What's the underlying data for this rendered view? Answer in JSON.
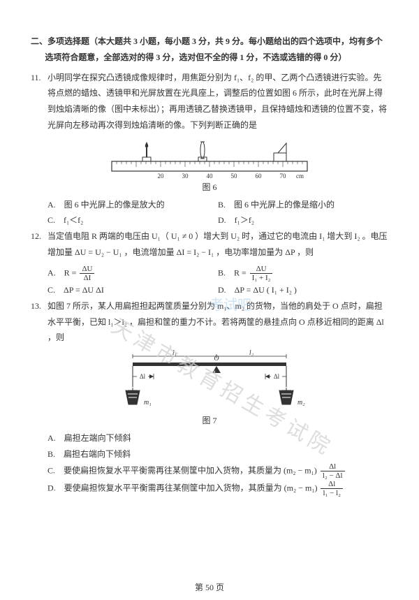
{
  "section": {
    "heading": "二、多项选择题（本大题共 3 小题，每小题 3 分，共 9 分。每小题给出的四个选项中，均有多个选项符合题意，全部选对的得 3 分，选对但不全的得 1 分，不选或选错的得 0 分）"
  },
  "q11": {
    "num": "11.",
    "text": "小明同学在探究凸透镜成像规律时，用焦距分别为 f₁、f₂ 的甲、乙两个凸透镜进行实验。先将点燃的蜡烛、透镜甲和光屏放置在光具座上，调整后的位置如图 6 所示，此时在光屏上得到烛焰清晰的像（图中未标出）；再用透镜乙替换透镜甲，且保持蜡烛和透镜的位置不变，将光屏向左移动再次得到烛焰清晰的像。下列判断正确的是",
    "figcap": "图 6",
    "optA": "A.　图 6 中光屏上的像是放大的",
    "optB": "B.　图 6 中光屏上的像是缩小的",
    "optC": "C.　f₁＜f₂",
    "optD": "D.　f₁＞f₂"
  },
  "q12": {
    "num": "12.",
    "text_a": "当定值电阻 R 两端的电压由 U₁（ U₁ ≠ 0 ）增大到 U₂ 时，通过它的电流由 I₁ 增大到 I₂ 。电压增加量 ΔU = U₂ − U₁ ，电流增加量 ΔI = I₂ − I₁ ，电功率增加量为 ΔP ，则",
    "optA_lhs": "A.　R =",
    "optA_num": "ΔU",
    "optA_den": "ΔI",
    "optB_lhs": "B.　R =",
    "optB_num": "ΔU",
    "optB_den": "I₁ + I₂",
    "optC": "C.　ΔP = ΔU ΔI",
    "optD": "D.　ΔP = ΔU ( I₁ + I₂ )"
  },
  "q13": {
    "num": "13.",
    "text": "如图 7 所示，某人用扁担担起两筐质量分别为 m₁、m₂ 的货物，当他的肩处于 O 点时，扁担水平平衡，已知 l₁＞l₂ ，扁担和筐的重力不计。若将两筐的悬挂点向 O 点移近相同的距离 Δl ，则",
    "figcap": "图 7",
    "optA": "A.　扁担左端向下倾斜",
    "optB": "B.　扁担右端向下倾斜",
    "optC_pre": "C.　要使扁担恢复水平平衡需再往某侧筐中加入货物，其质量为 (m₂ − m₁)",
    "optC_num": "Δl",
    "optC_den": "l₂ − Δl",
    "optD_pre": "D.　要使扁担恢复水平平衡需再往某侧筐中加入货物，其质量为 (m₂ − m₁)",
    "optD_num": "Δl",
    "optD_den": "l₁ − l₂"
  },
  "footer": "第 50 页",
  "watermarks": {
    "w1": "天津市教育招生考试院",
    "w2": "考试吧"
  },
  "fig6": {
    "ticks": [
      20,
      30,
      40,
      50,
      60,
      70
    ],
    "cm": "cm",
    "ruler_fill": "#ffffff",
    "ruler_stroke": "#333333",
    "tick_color": "#333333",
    "text_color": "#333333",
    "flame_color": "#333333"
  },
  "fig7": {
    "labels": {
      "l1": "l₁",
      "l2": "l₂",
      "dl_left": "Δl",
      "dl_right": "Δl",
      "m1": "m₁",
      "m2": "m₂"
    },
    "bar_color": "#333333",
    "string_color": "#333333",
    "bucket_fill": "#333333",
    "bucket_pattern": "#ffffff",
    "pivot_fill": "#333333",
    "text_color": "#333333",
    "arrow_color": "#333333"
  }
}
